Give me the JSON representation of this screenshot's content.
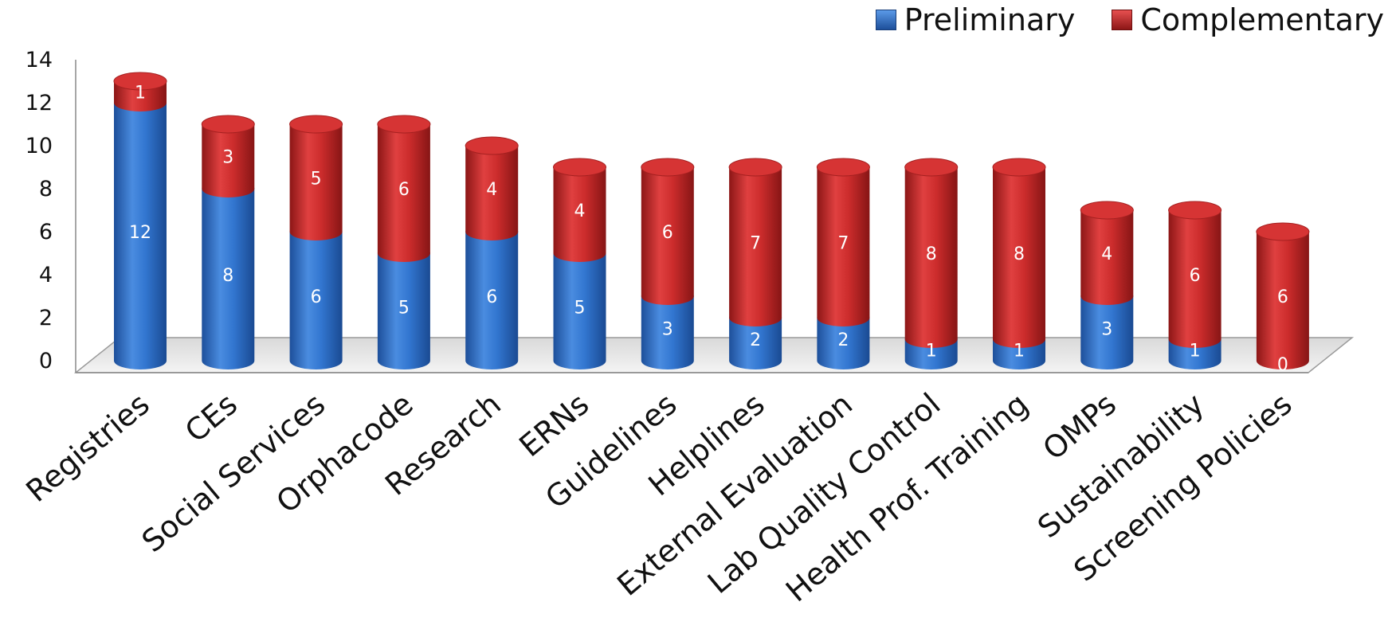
{
  "chart_data": {
    "type": "bar",
    "stacked": true,
    "three_d": true,
    "categories": [
      "Registries",
      "CEs",
      "Social Services",
      "Orphacode",
      "Research",
      "ERNs",
      "Guidelines",
      "Helplines",
      "External Evaluation",
      "Lab Quality Control",
      "Health Prof. Training",
      "OMPs",
      "Sustainability",
      "Screening Policies"
    ],
    "series": [
      {
        "name": "Preliminary",
        "values": [
          12,
          8,
          6,
          5,
          6,
          5,
          3,
          2,
          2,
          1,
          1,
          3,
          1,
          0
        ],
        "color": "#2f6fc8"
      },
      {
        "name": "Complementary",
        "values": [
          1,
          3,
          5,
          6,
          4,
          4,
          6,
          7,
          7,
          8,
          8,
          4,
          6,
          6
        ],
        "color": "#c62a2a"
      }
    ],
    "ylim": [
      0,
      14
    ],
    "yticks": [
      0,
      2,
      4,
      6,
      8,
      10,
      12,
      14
    ],
    "title": "",
    "xlabel": "",
    "ylabel": "",
    "legend_position": "top-right",
    "grid": false
  }
}
